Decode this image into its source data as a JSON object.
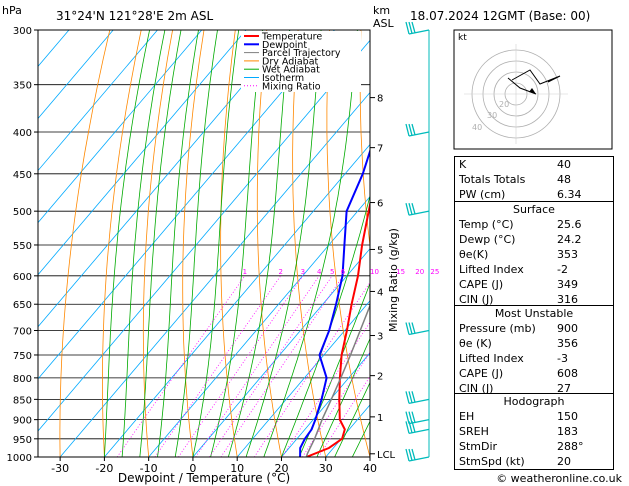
{
  "header": {
    "pressure_unit": "hPa",
    "location": "31°24'N 121°28'E 2m ASL",
    "height_unit": "km",
    "height_ref": "ASL",
    "datetime": "18.07.2024 12GMT (Base: 00)",
    "hodograph_label": "kt",
    "copyright": "© weatheronline.co.uk"
  },
  "chart_data": {
    "type": "line",
    "title": "31°24'N 121°28'E 2m ASL",
    "xlabel": "Dewpoint / Temperature (°C)",
    "ylabel": "hPa",
    "right_label": "Mixing Ratio (g/kg)",
    "xlim": [
      -35,
      40
    ],
    "ylim": [
      1000,
      300
    ],
    "x_ticks": [
      -30,
      -20,
      -10,
      0,
      10,
      20,
      30,
      40
    ],
    "pressure_levels": [
      300,
      350,
      400,
      450,
      500,
      550,
      600,
      650,
      700,
      750,
      800,
      850,
      900,
      950,
      1000
    ],
    "height_km_ticks": [
      {
        "label": "8",
        "p": 363
      },
      {
        "label": "7",
        "p": 418
      },
      {
        "label": "6",
        "p": 488
      },
      {
        "label": "5",
        "p": 557
      },
      {
        "label": "4",
        "p": 627
      },
      {
        "label": "3",
        "p": 710
      },
      {
        "label": "2",
        "p": 795
      },
      {
        "label": "1",
        "p": 893
      },
      {
        "label": "LCL",
        "p": 991
      }
    ],
    "mixing_ratio_labels": [
      "1",
      "2",
      "3",
      "4",
      "5",
      "6",
      "10",
      "15",
      "20",
      "25"
    ],
    "mixing_ratio_values": [
      1,
      2,
      3,
      4,
      5,
      6,
      10,
      15,
      20,
      25
    ],
    "legend": [
      "Temperature",
      "Dewpoint",
      "Parcel Trajectory",
      "Dry Adiabat",
      "Wet Adiabat",
      "Isotherm",
      "Mixing Ratio"
    ],
    "colors": {
      "temperature": "#ff0000",
      "dewpoint": "#0000ff",
      "parcel": "#808080",
      "dry_adiabat": "#ff8800",
      "wet_adiabat": "#00aa00",
      "isotherm": "#00aaff",
      "mixing_ratio": "#ff00ff",
      "wind": "#00bbbb"
    },
    "series": [
      {
        "name": "Temperature",
        "points": [
          [
            1000,
            25.6
          ],
          [
            975,
            29.0
          ],
          [
            950,
            30.2
          ],
          [
            925,
            29.0
          ],
          [
            900,
            26.0
          ],
          [
            850,
            22.0
          ],
          [
            800,
            18.0
          ],
          [
            750,
            14.0
          ],
          [
            700,
            10.5
          ],
          [
            650,
            6.5
          ],
          [
            600,
            2.5
          ],
          [
            550,
            -2.5
          ],
          [
            500,
            -7.5
          ],
          [
            450,
            -13.0
          ],
          [
            400,
            -19.5
          ],
          [
            350,
            -27.5
          ],
          [
            300,
            -36.0
          ]
        ]
      },
      {
        "name": "Dewpoint",
        "points": [
          [
            1000,
            24.2
          ],
          [
            975,
            22.5
          ],
          [
            950,
            21.8
          ],
          [
            925,
            21.5
          ],
          [
            900,
            20.5
          ],
          [
            850,
            18.0
          ],
          [
            800,
            15.0
          ],
          [
            750,
            9.0
          ],
          [
            700,
            6.5
          ],
          [
            650,
            3.0
          ],
          [
            600,
            -1.0
          ],
          [
            550,
            -6.5
          ],
          [
            500,
            -12.5
          ],
          [
            450,
            -16.0
          ],
          [
            400,
            -21.0
          ],
          [
            350,
            -30.0
          ],
          [
            300,
            -38.0
          ]
        ]
      },
      {
        "name": "Parcel Trajectory",
        "points": [
          [
            1000,
            25.6
          ],
          [
            990,
            25.2
          ],
          [
            950,
            24.0
          ],
          [
            900,
            22.0
          ],
          [
            850,
            20.2
          ],
          [
            800,
            18.2
          ],
          [
            750,
            16.0
          ],
          [
            700,
            13.5
          ],
          [
            650,
            10.8
          ],
          [
            600,
            7.8
          ],
          [
            550,
            4.2
          ],
          [
            500,
            0.0
          ],
          [
            450,
            -5.0
          ],
          [
            400,
            -11.0
          ],
          [
            350,
            -18.5
          ],
          [
            300,
            -27.5
          ]
        ]
      }
    ],
    "wind_barbs": [
      300,
      400,
      500,
      700,
      850,
      900,
      925,
      1000
    ],
    "hodograph_rings": [
      "40",
      "30",
      "20"
    ]
  },
  "indices": {
    "rows": [
      {
        "label": "K",
        "value": "40"
      },
      {
        "label": "Totals Totals",
        "value": "48"
      },
      {
        "label": "PW (cm)",
        "value": "6.34"
      }
    ]
  },
  "surface": {
    "title": "Surface",
    "rows": [
      {
        "label": "Temp (°C)",
        "value": "25.6"
      },
      {
        "label": "Dewp (°C)",
        "value": "24.2"
      },
      {
        "label": "θe(K)",
        "value": "353"
      },
      {
        "label": "Lifted Index",
        "value": "-2"
      },
      {
        "label": "CAPE (J)",
        "value": "349"
      },
      {
        "label": "CIN (J)",
        "value": "316"
      }
    ]
  },
  "unstable": {
    "title": "Most Unstable",
    "rows": [
      {
        "label": "Pressure (mb)",
        "value": "900"
      },
      {
        "label": "θe (K)",
        "value": "356"
      },
      {
        "label": "Lifted Index",
        "value": "-3"
      },
      {
        "label": "CAPE (J)",
        "value": "608"
      },
      {
        "label": "CIN (J)",
        "value": "27"
      }
    ]
  },
  "hodograph": {
    "title": "Hodograph",
    "rows": [
      {
        "label": "EH",
        "value": "150"
      },
      {
        "label": "SREH",
        "value": "183"
      },
      {
        "label": "StmDir",
        "value": "288°"
      },
      {
        "label": "StmSpd (kt)",
        "value": "20"
      }
    ]
  }
}
